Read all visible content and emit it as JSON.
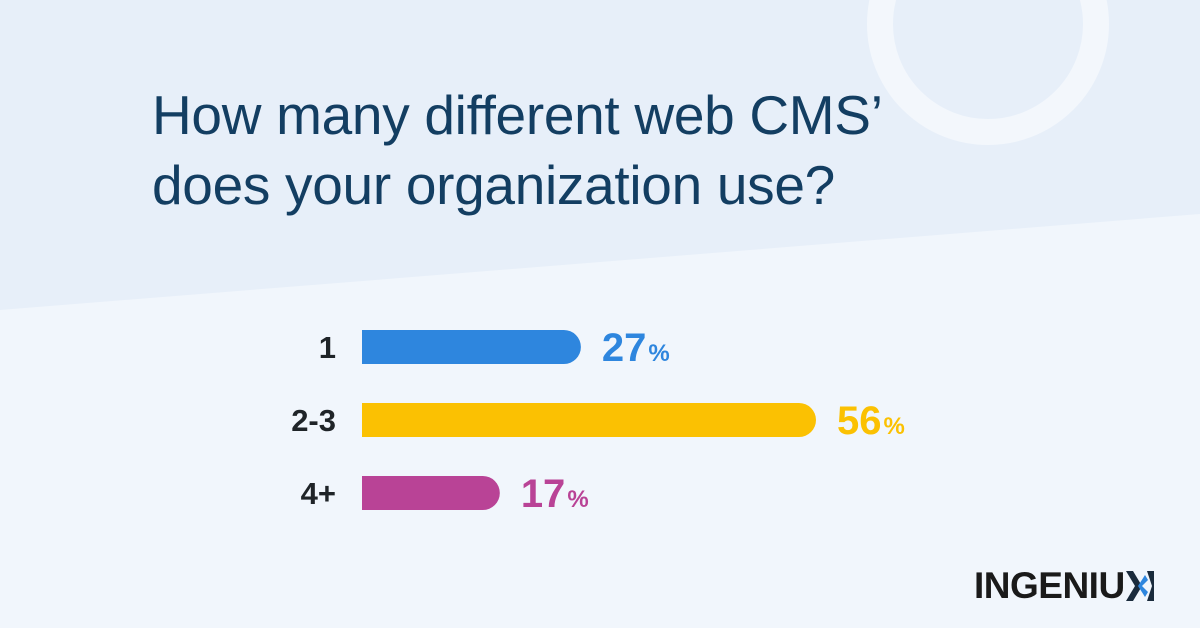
{
  "title_lines": [
    "How many different web CMS’",
    "does your organization use?"
  ],
  "chart_data": {
    "type": "bar",
    "orientation": "horizontal",
    "title": "How many different web CMS’ does your organization use?",
    "categories": [
      "1",
      "2-3",
      "4+"
    ],
    "values": [
      27,
      56,
      17
    ],
    "value_labels": [
      "27",
      "56",
      "17"
    ],
    "value_suffix": "%",
    "colors": [
      "#2e86de",
      "#fbc102",
      "#b94396"
    ],
    "xlim": [
      0,
      56
    ],
    "grid": false,
    "legend": "none",
    "xlabel": "",
    "ylabel": ""
  },
  "logo": {
    "text": "INGENIU",
    "mark": "x-mark-icon",
    "text_color": "#1a1a1a",
    "mark_colors": [
      "#1a2b3c",
      "#2e86de"
    ]
  },
  "colors": {
    "background": "#e7eff9",
    "panel": "#f1f6fc",
    "title": "#133e62",
    "category_text": "#1f2428"
  }
}
